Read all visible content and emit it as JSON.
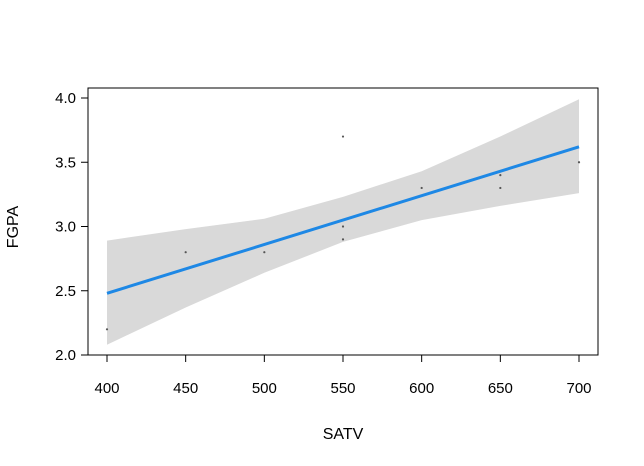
{
  "chart_data": {
    "type": "scatter",
    "xlabel": "SATV",
    "ylabel": "FGPA",
    "xlim": [
      400,
      700
    ],
    "ylim": [
      2.0,
      4.0
    ],
    "x_ticks": [
      "400",
      "450",
      "500",
      "550",
      "600",
      "650",
      "700"
    ],
    "y_ticks": [
      "2.0",
      "2.5",
      "3.0",
      "3.5",
      "4.0"
    ],
    "points": [
      {
        "x": 400,
        "y": 2.2
      },
      {
        "x": 450,
        "y": 2.8
      },
      {
        "x": 500,
        "y": 2.8
      },
      {
        "x": 550,
        "y": 3.7
      },
      {
        "x": 550,
        "y": 3.0
      },
      {
        "x": 550,
        "y": 2.9
      },
      {
        "x": 600,
        "y": 3.3
      },
      {
        "x": 650,
        "y": 3.4
      },
      {
        "x": 650,
        "y": 3.3
      },
      {
        "x": 700,
        "y": 3.5
      }
    ],
    "fit_line": {
      "x": [
        400,
        700
      ],
      "y": [
        2.48,
        3.62
      ]
    },
    "confidence_band": {
      "x": [
        400,
        450,
        500,
        550,
        600,
        650,
        700
      ],
      "upper": [
        2.89,
        2.98,
        3.06,
        3.23,
        3.43,
        3.7,
        3.99
      ],
      "lower": [
        2.08,
        2.37,
        2.64,
        2.88,
        3.05,
        3.16,
        3.26
      ]
    },
    "grid": false,
    "colors": {
      "line": "#1e88e5",
      "band": "#d9d9d9",
      "points": "#555555"
    }
  }
}
